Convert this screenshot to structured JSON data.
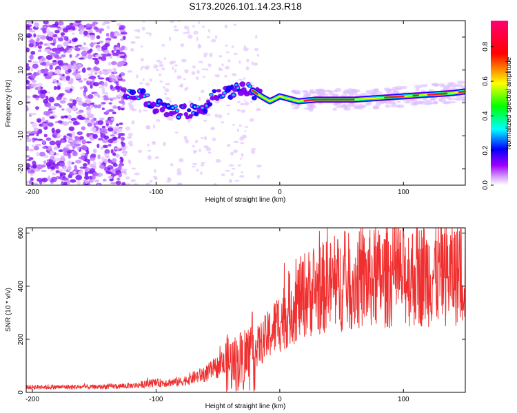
{
  "title": "S173.2026.101.14.23.R18",
  "chart_data": [
    {
      "type": "heatmap",
      "xlabel": "Height of straight line (km)",
      "ylabel": "Frequency (Hz)",
      "xlim": [
        -205,
        150
      ],
      "ylim": [
        -25,
        25
      ],
      "xticks": [
        -200,
        -100,
        0,
        100
      ],
      "xtick_labels": [
        "-200",
        "-100",
        "0",
        "100"
      ],
      "yticks": [
        -20,
        -10,
        0,
        10,
        20
      ],
      "ytick_labels": [
        "-20",
        "-10",
        "0",
        "10",
        "20"
      ],
      "colorbar": {
        "label": "Normalized spectral amplitude",
        "range": [
          0,
          0.95
        ],
        "ticks": [
          0.0,
          0.2,
          0.4,
          0.6,
          0.8
        ],
        "tick_labels": [
          "0.0",
          "0.2",
          "0.4",
          "0.6",
          "0.8"
        ],
        "colors": [
          "#ffffff",
          "#a000ff",
          "#0000ff",
          "#00ffff",
          "#00ff00",
          "#ffff00",
          "#ff0000",
          "#ff0080"
        ]
      },
      "ridge": [
        {
          "x": -125,
          "y": 3
        },
        {
          "x": -110,
          "y": 2
        },
        {
          "x": -100,
          "y": -1
        },
        {
          "x": -90,
          "y": -2
        },
        {
          "x": -75,
          "y": -3
        },
        {
          "x": -62,
          "y": -2
        },
        {
          "x": -55,
          "y": 2
        },
        {
          "x": -45,
          "y": 3
        },
        {
          "x": -35,
          "y": 4
        },
        {
          "x": -25,
          "y": 4.5
        },
        {
          "x": -15,
          "y": 2
        },
        {
          "x": -8,
          "y": 0.5
        },
        {
          "x": 0,
          "y": 2
        },
        {
          "x": 10,
          "y": 1
        },
        {
          "x": 15,
          "y": 0.5
        },
        {
          "x": 30,
          "y": 1
        },
        {
          "x": 60,
          "y": 1
        },
        {
          "x": 80,
          "y": 1.5
        },
        {
          "x": 100,
          "y": 2
        },
        {
          "x": 120,
          "y": 2.5
        },
        {
          "x": 140,
          "y": 3
        },
        {
          "x": 150,
          "y": 3.5
        }
      ],
      "noise_region_x": [
        -205,
        -125
      ]
    },
    {
      "type": "line",
      "xlabel": "Height of straight line (km)",
      "ylabel": "SNR (10 * v/v)",
      "xlim": [
        -205,
        150
      ],
      "ylim": [
        0,
        620
      ],
      "xticks": [
        -200,
        -100,
        0,
        100
      ],
      "xtick_labels": [
        "-200",
        "-100",
        "0",
        "100"
      ],
      "yticks": [
        0,
        200,
        400,
        600
      ],
      "ytick_labels": [
        "0",
        "200",
        "400",
        "600"
      ],
      "series": [
        {
          "name": "SNR",
          "color": "#f03030",
          "trend": [
            {
              "x": -205,
              "y": 20
            },
            {
              "x": -150,
              "y": 20
            },
            {
              "x": -120,
              "y": 25
            },
            {
              "x": -100,
              "y": 35
            },
            {
              "x": -80,
              "y": 40
            },
            {
              "x": -60,
              "y": 70
            },
            {
              "x": -45,
              "y": 110
            },
            {
              "x": -35,
              "y": 110
            },
            {
              "x": -25,
              "y": 140
            },
            {
              "x": -10,
              "y": 210
            },
            {
              "x": 0,
              "y": 270
            },
            {
              "x": 10,
              "y": 320
            },
            {
              "x": 20,
              "y": 370
            },
            {
              "x": 40,
              "y": 400
            },
            {
              "x": 60,
              "y": 420
            },
            {
              "x": 80,
              "y": 430
            },
            {
              "x": 100,
              "y": 440
            },
            {
              "x": 120,
              "y": 445
            },
            {
              "x": 150,
              "y": 450
            }
          ]
        }
      ]
    }
  ]
}
